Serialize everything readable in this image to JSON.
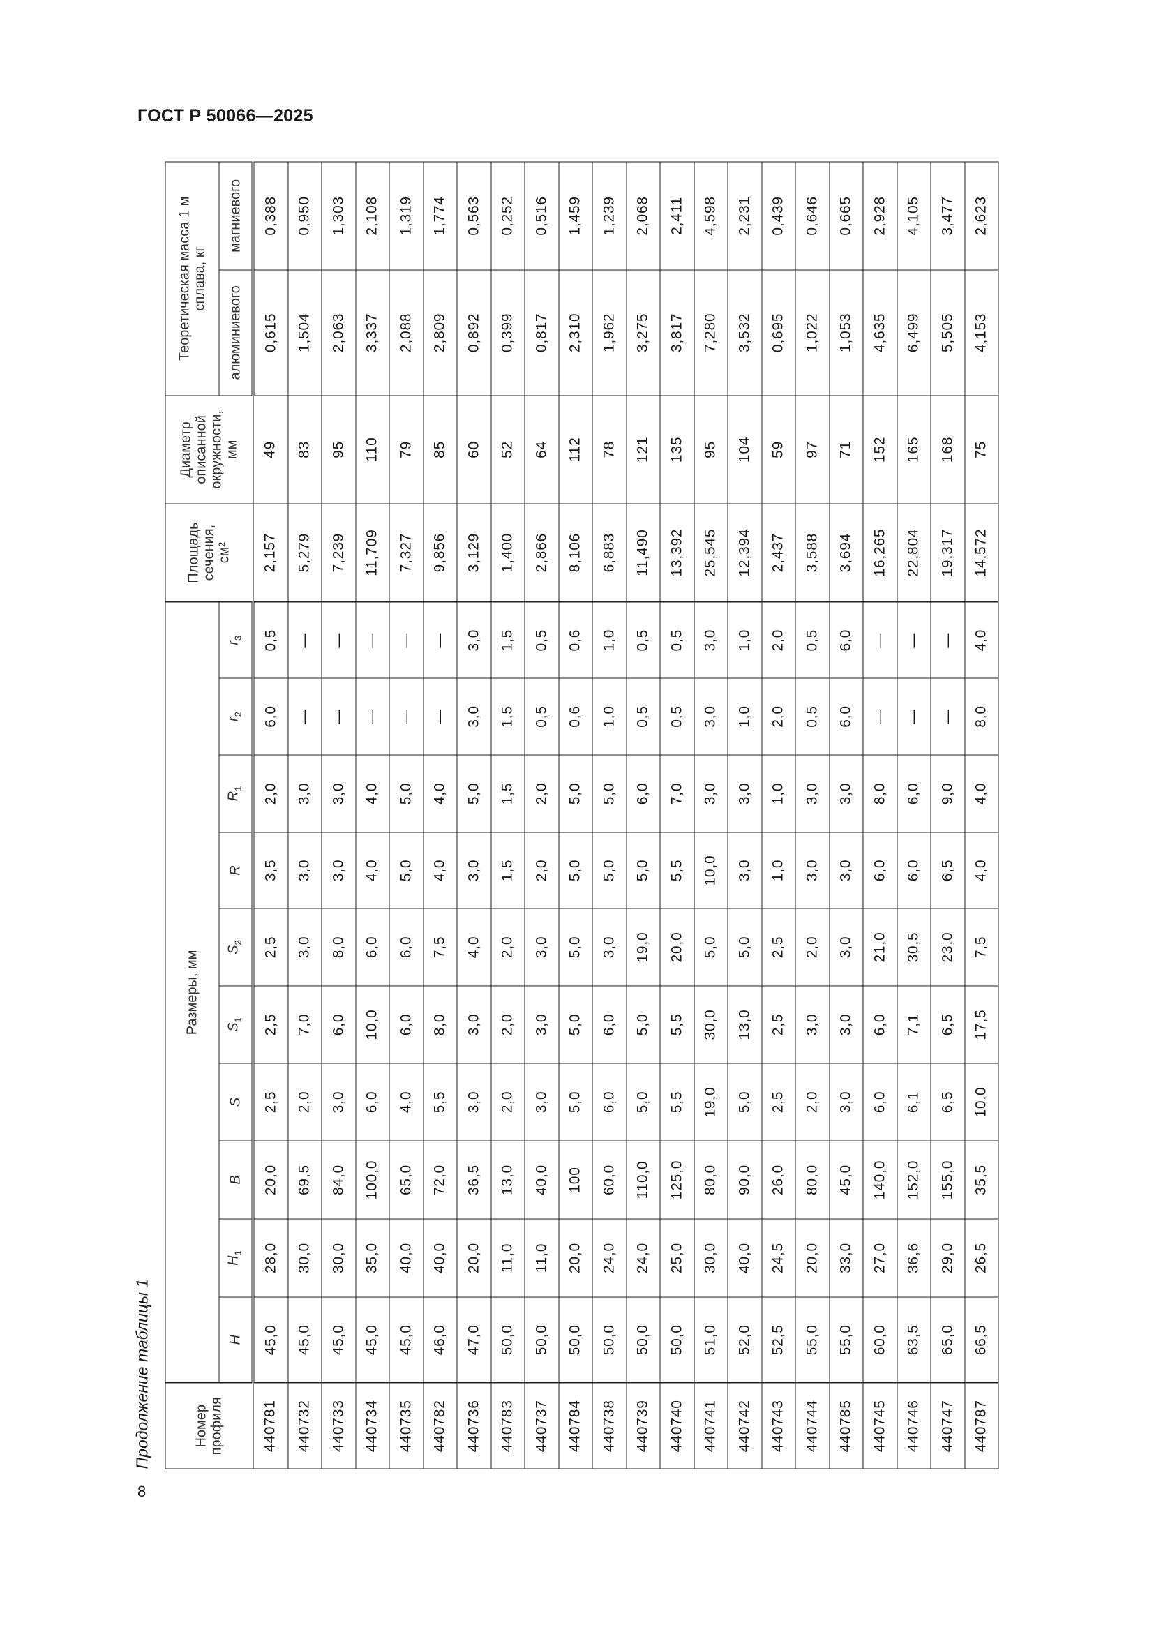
{
  "header": {
    "doc_title": "ГОСТ Р 50066—2025",
    "page_number": "8"
  },
  "caption": "Продолжение таблицы 1",
  "table": {
    "col_profile": "Номер\nпрофиля",
    "group_dims": "Размеры, мм",
    "dims": [
      {
        "sym": "H",
        "sub": ""
      },
      {
        "sym": "H",
        "sub": "1"
      },
      {
        "sym": "B",
        "sub": ""
      },
      {
        "sym": "S",
        "sub": ""
      },
      {
        "sym": "S",
        "sub": "1"
      },
      {
        "sym": "S",
        "sub": "2"
      },
      {
        "sym": "R",
        "sub": ""
      },
      {
        "sym": "R",
        "sub": "1"
      },
      {
        "sym": "r",
        "sub": "2"
      },
      {
        "sym": "r",
        "sub": "3"
      }
    ],
    "col_area": "Площадь\nсечения,\nсм²",
    "col_diameter": "Диаметр\nописанной\nокружности,\nмм",
    "group_mass": "Теоретическая масса 1 м\nсплава, кг",
    "col_al": "алюминиевого",
    "col_mg": "магниевого",
    "rows": [
      [
        "440781",
        "45,0",
        "28,0",
        "20,0",
        "2,5",
        "2,5",
        "2,5",
        "3,5",
        "2,0",
        "6,0",
        "0,5",
        "2,157",
        "49",
        "0,615",
        "0,388"
      ],
      [
        "440732",
        "45,0",
        "30,0",
        "69,5",
        "2,0",
        "7,0",
        "3,0",
        "3,0",
        "3,0",
        "—",
        "—",
        "5,279",
        "83",
        "1,504",
        "0,950"
      ],
      [
        "440733",
        "45,0",
        "30,0",
        "84,0",
        "3,0",
        "6,0",
        "8,0",
        "3,0",
        "3,0",
        "—",
        "—",
        "7,239",
        "95",
        "2,063",
        "1,303"
      ],
      [
        "440734",
        "45,0",
        "35,0",
        "100,0",
        "6,0",
        "10,0",
        "6,0",
        "4,0",
        "4,0",
        "—",
        "—",
        "11,709",
        "110",
        "3,337",
        "2,108"
      ],
      [
        "440735",
        "45,0",
        "40,0",
        "65,0",
        "4,0",
        "6,0",
        "6,0",
        "5,0",
        "5,0",
        "—",
        "—",
        "7,327",
        "79",
        "2,088",
        "1,319"
      ],
      [
        "440782",
        "46,0",
        "40,0",
        "72,0",
        "5,5",
        "8,0",
        "7,5",
        "4,0",
        "4,0",
        "—",
        "—",
        "9,856",
        "85",
        "2,809",
        "1,774"
      ],
      [
        "440736",
        "47,0",
        "20,0",
        "36,5",
        "3,0",
        "3,0",
        "4,0",
        "3,0",
        "5,0",
        "3,0",
        "3,0",
        "3,129",
        "60",
        "0,892",
        "0,563"
      ],
      [
        "440783",
        "50,0",
        "11,0",
        "13,0",
        "2,0",
        "2,0",
        "2,0",
        "1,5",
        "1,5",
        "1,5",
        "1,5",
        "1,400",
        "52",
        "0,399",
        "0,252"
      ],
      [
        "440737",
        "50,0",
        "11,0",
        "40,0",
        "3,0",
        "3,0",
        "3,0",
        "2,0",
        "2,0",
        "0,5",
        "0,5",
        "2,866",
        "64",
        "0,817",
        "0,516"
      ],
      [
        "440784",
        "50,0",
        "20,0",
        "100",
        "5,0",
        "5,0",
        "5,0",
        "5,0",
        "5,0",
        "0,6",
        "0,6",
        "8,106",
        "112",
        "2,310",
        "1,459"
      ],
      [
        "440738",
        "50,0",
        "24,0",
        "60,0",
        "6,0",
        "6,0",
        "3,0",
        "5,0",
        "5,0",
        "1,0",
        "1,0",
        "6,883",
        "78",
        "1,962",
        "1,239"
      ],
      [
        "440739",
        "50,0",
        "24,0",
        "110,0",
        "5,0",
        "5,0",
        "19,0",
        "5,0",
        "6,0",
        "0,5",
        "0,5",
        "11,490",
        "121",
        "3,275",
        "2,068"
      ],
      [
        "440740",
        "50,0",
        "25,0",
        "125,0",
        "5,5",
        "5,5",
        "20,0",
        "5,5",
        "7,0",
        "0,5",
        "0,5",
        "13,392",
        "135",
        "3,817",
        "2,411"
      ],
      [
        "440741",
        "51,0",
        "30,0",
        "80,0",
        "19,0",
        "30,0",
        "5,0",
        "10,0",
        "3,0",
        "3,0",
        "3,0",
        "25,545",
        "95",
        "7,280",
        "4,598"
      ],
      [
        "440742",
        "52,0",
        "40,0",
        "90,0",
        "5,0",
        "13,0",
        "5,0",
        "3,0",
        "3,0",
        "1,0",
        "1,0",
        "12,394",
        "104",
        "3,532",
        "2,231"
      ],
      [
        "440743",
        "52,5",
        "24,5",
        "26,0",
        "2,5",
        "2,5",
        "2,5",
        "1,0",
        "1,0",
        "2,0",
        "2,0",
        "2,437",
        "59",
        "0,695",
        "0,439"
      ],
      [
        "440744",
        "55,0",
        "20,0",
        "80,0",
        "2,0",
        "3,0",
        "2,0",
        "3,0",
        "3,0",
        "0,5",
        "0,5",
        "3,588",
        "97",
        "1,022",
        "0,646"
      ],
      [
        "440785",
        "55,0",
        "33,0",
        "45,0",
        "3,0",
        "3,0",
        "3,0",
        "3,0",
        "3,0",
        "6,0",
        "6,0",
        "3,694",
        "71",
        "1,053",
        "0,665"
      ],
      [
        "440745",
        "60,0",
        "27,0",
        "140,0",
        "6,0",
        "6,0",
        "21,0",
        "6,0",
        "8,0",
        "—",
        "—",
        "16,265",
        "152",
        "4,635",
        "2,928"
      ],
      [
        "440746",
        "63,5",
        "36,6",
        "152,0",
        "6,1",
        "7,1",
        "30,5",
        "6,0",
        "6,0",
        "—",
        "—",
        "22,804",
        "165",
        "6,499",
        "4,105"
      ],
      [
        "440747",
        "65,0",
        "29,0",
        "155,0",
        "6,5",
        "6,5",
        "23,0",
        "6,5",
        "9,0",
        "—",
        "—",
        "19,317",
        "168",
        "5,505",
        "3,477"
      ],
      [
        "440787",
        "66,5",
        "26,5",
        "35,5",
        "10,0",
        "17,5",
        "7,5",
        "4,0",
        "4,0",
        "8,0",
        "4,0",
        "14,572",
        "75",
        "4,153",
        "2,623"
      ]
    ]
  }
}
